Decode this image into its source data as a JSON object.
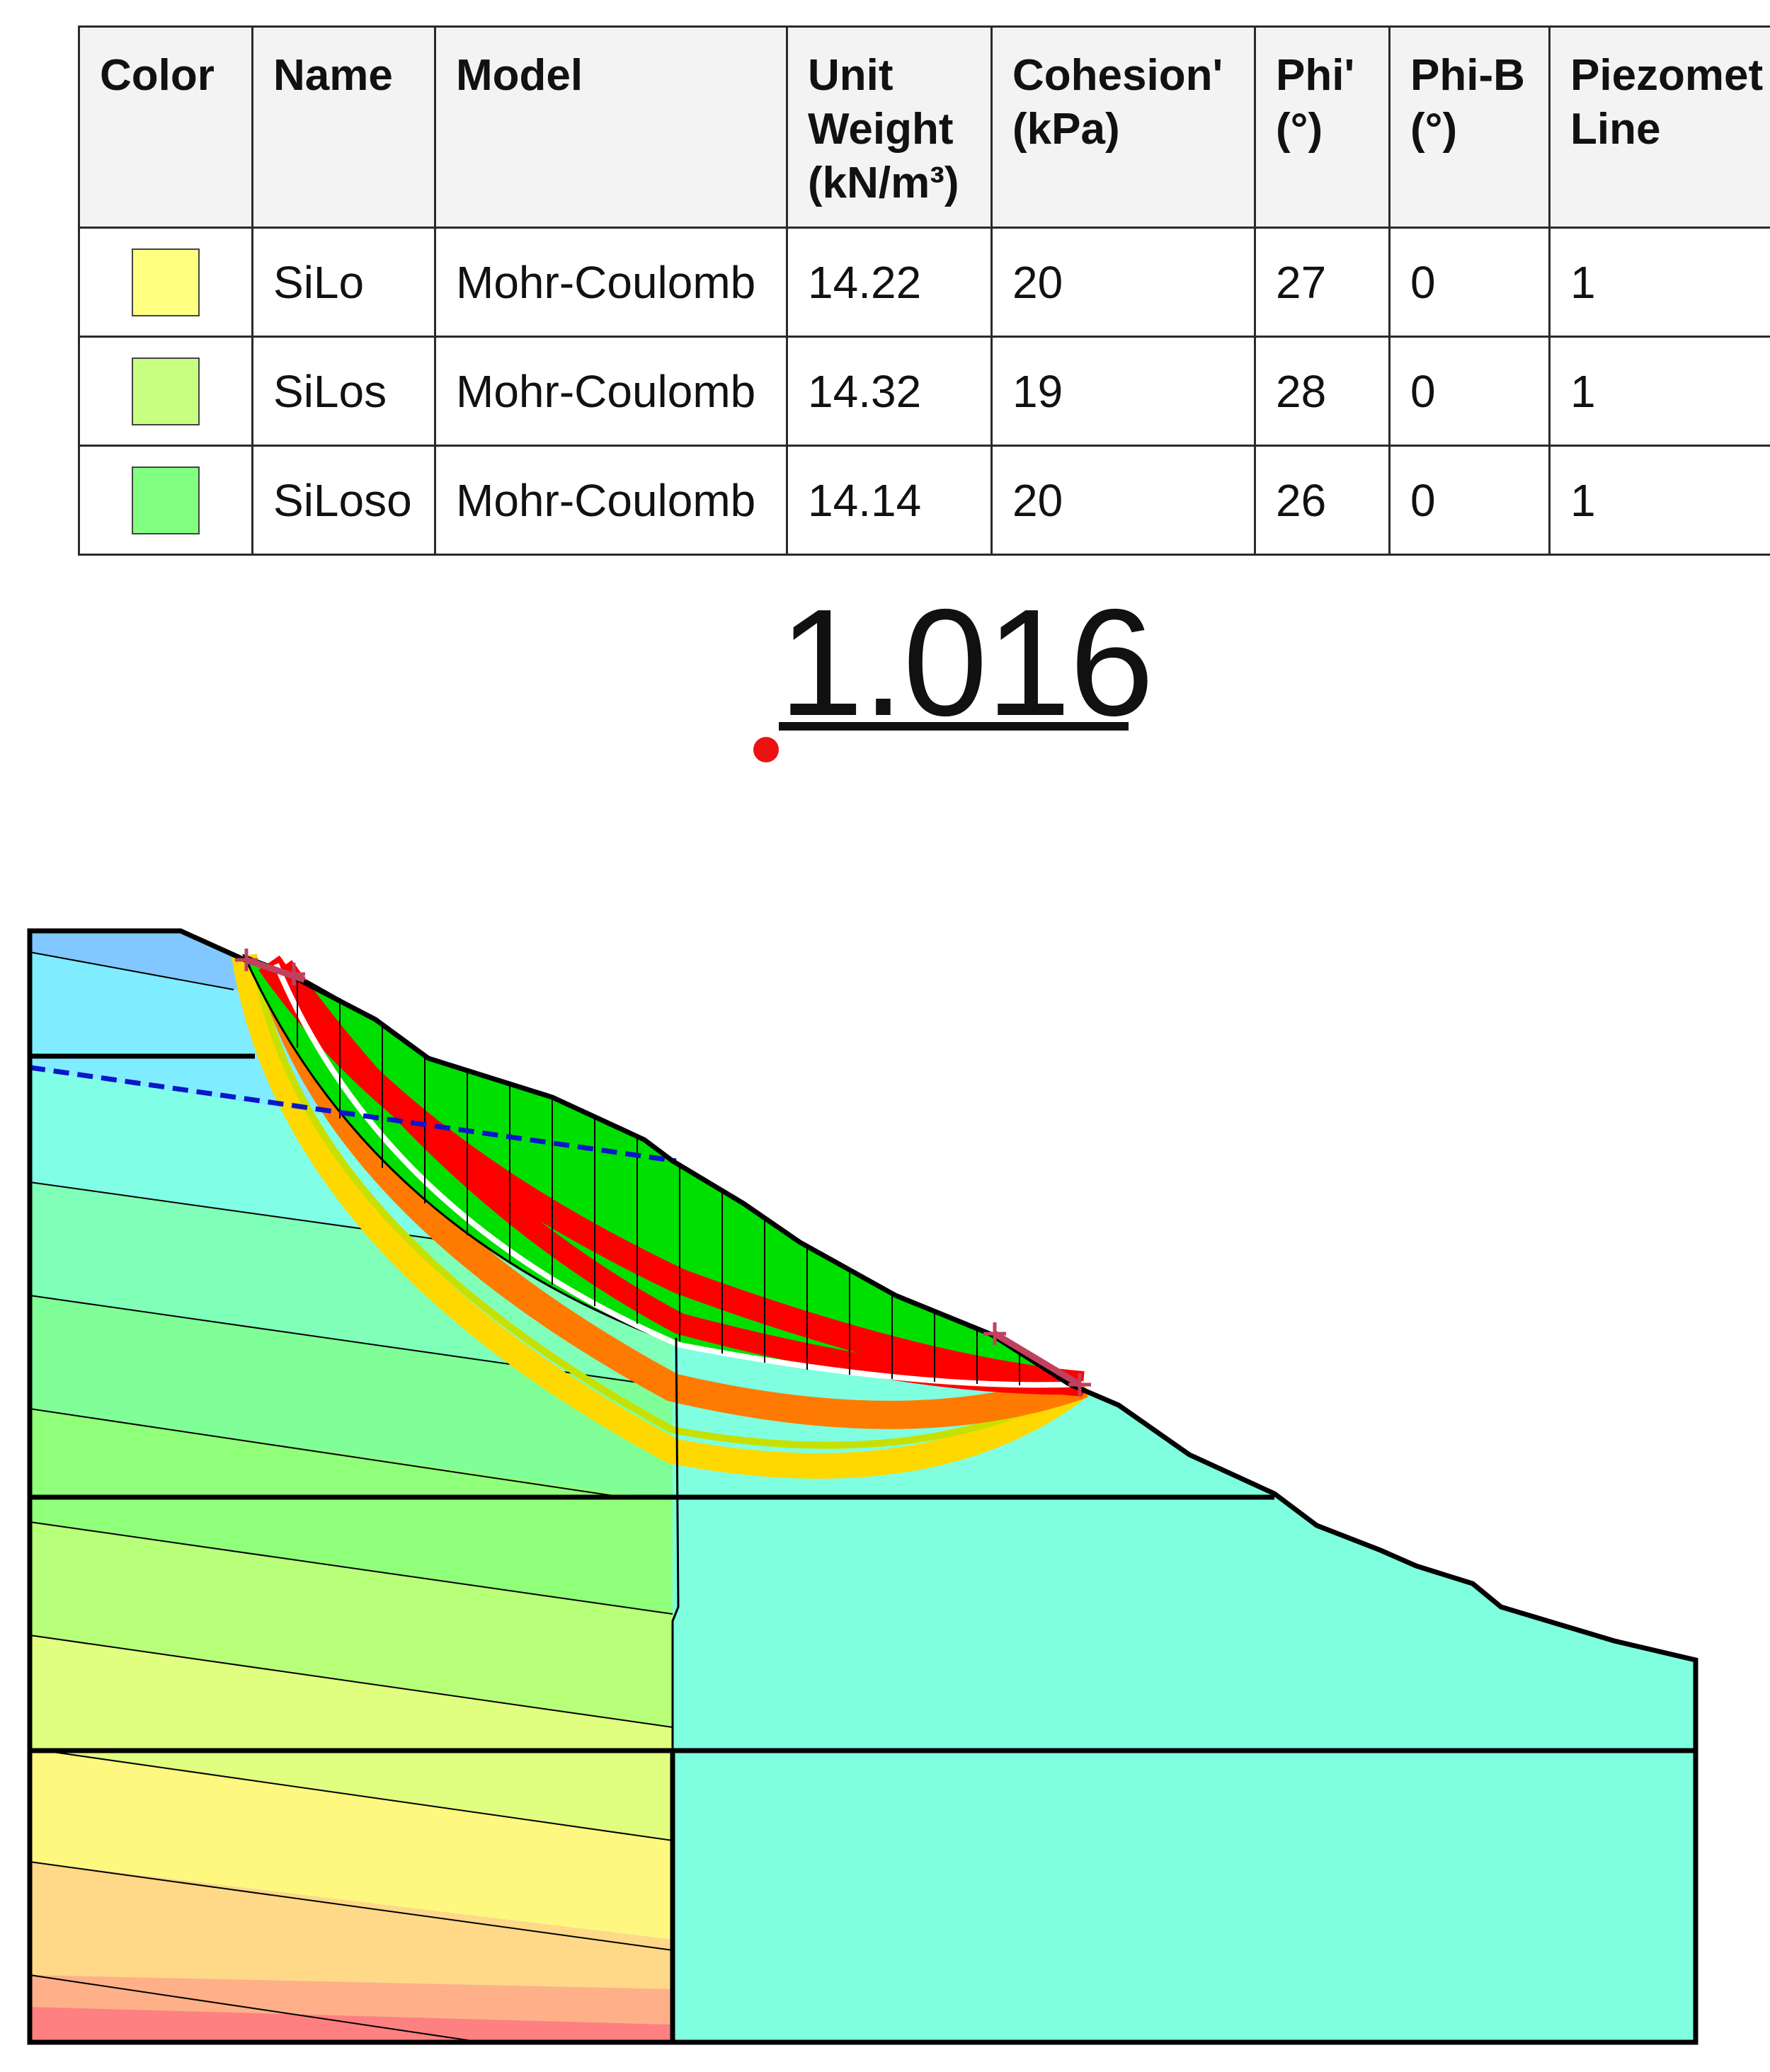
{
  "materials_table": {
    "headers": {
      "color": "Color",
      "name": "Name",
      "model": "Model",
      "unit_weight": [
        "Unit",
        "Weight",
        "(kN/m³)"
      ],
      "cohesion": [
        "Cohesion'",
        "(kPa)"
      ],
      "phi": [
        "Phi'",
        "(°)"
      ],
      "phi_b": [
        "Phi-B",
        "(°)"
      ],
      "piezometric_line": [
        "Piezomet",
        "Line"
      ]
    },
    "rows": [
      {
        "color": "#ffff80",
        "name": "SiLo",
        "model": "Mohr-Coulomb",
        "unit_weight": "14.22",
        "cohesion": "20",
        "phi": "27",
        "phi_b": "0",
        "piezometric_line": "1"
      },
      {
        "color": "#c8ff80",
        "name": "SiLos",
        "model": "Mohr-Coulomb",
        "unit_weight": "14.32",
        "cohesion": "19",
        "phi": "28",
        "phi_b": "0",
        "piezometric_line": "1"
      },
      {
        "color": "#80ff80",
        "name": "SiLoso",
        "model": "Mohr-Coulomb",
        "unit_weight": "14.14",
        "cohesion": "20",
        "phi": "26",
        "phi_b": "0",
        "piezometric_line": "1"
      }
    ]
  },
  "factor_of_safety": "1.016",
  "colors": {
    "critical_slip_slices": "#00e000",
    "red_band": "#ff0000",
    "orange_band": "#ff7a00",
    "yellow_band": "#ffd800",
    "piezometric_line": "#0a16c8",
    "entry_exit_marker": "#c04060",
    "fos_point": "#ee1111",
    "right_region": "#7fffe0",
    "outline": "#000000"
  }
}
